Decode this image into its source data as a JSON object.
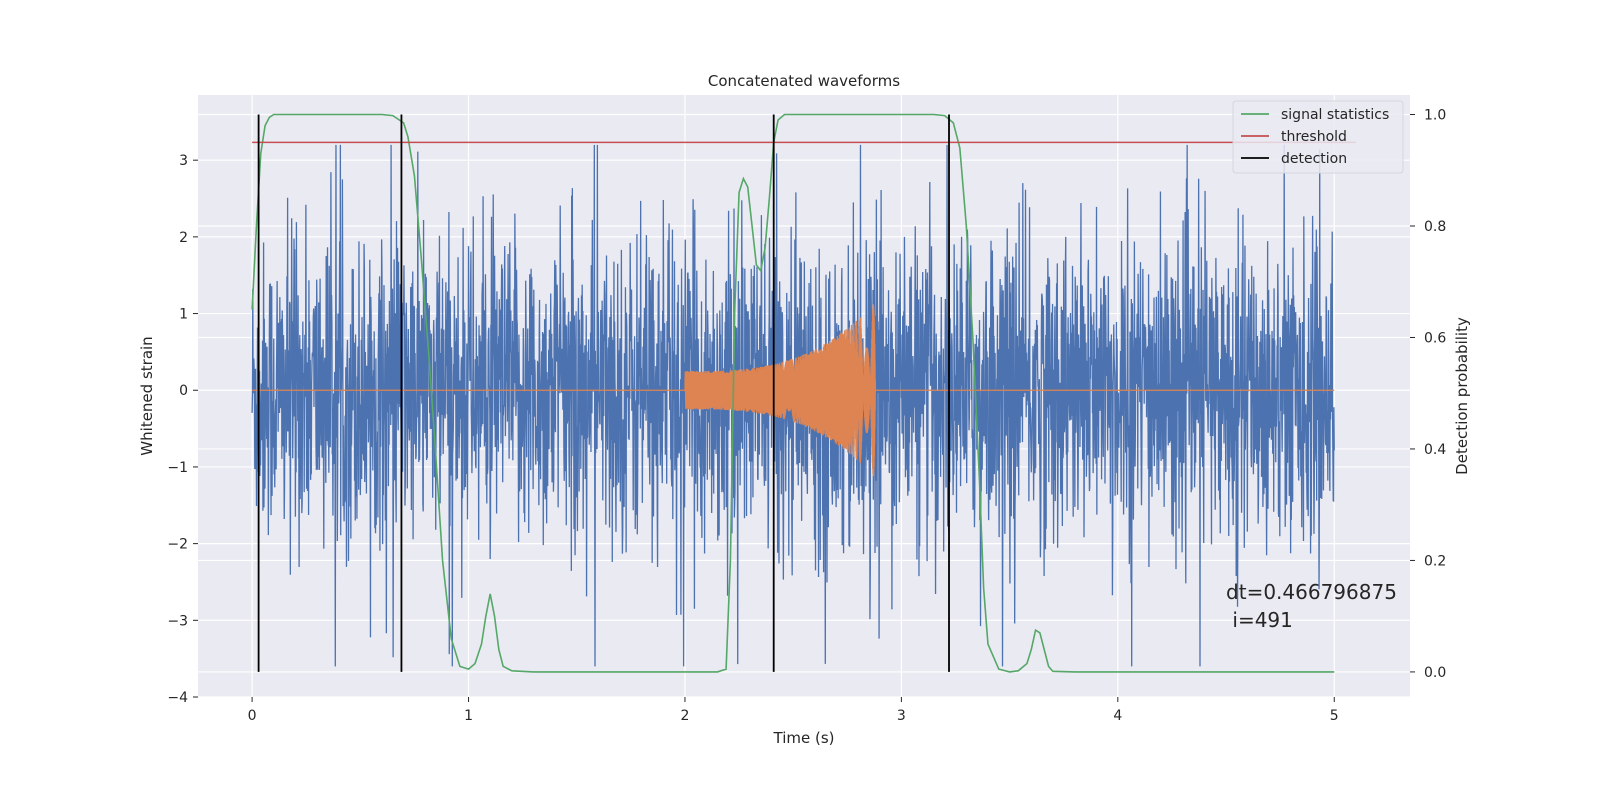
{
  "chart_data": {
    "type": "line",
    "title": "Concatenated waveforms",
    "xlabel": "Time (s)",
    "ylabel_left": "Whitened strain",
    "ylabel_right": "Detection probability",
    "xlim": [
      -0.25,
      5.35
    ],
    "ylim_left": [
      -4.0,
      3.85
    ],
    "ylim_right": [
      -0.045,
      1.035
    ],
    "x_ticks": [
      0,
      1,
      2,
      3,
      4,
      5
    ],
    "x_tick_labels": [
      "0",
      "1",
      "2",
      "3",
      "4",
      "5"
    ],
    "y_left_ticks": [
      -4,
      -3,
      -2,
      -1,
      0,
      1,
      2,
      3
    ],
    "y_left_tick_labels": [
      "−4",
      "−3",
      "−2",
      "−1",
      "0",
      "1",
      "2",
      "3"
    ],
    "y_right_ticks": [
      0.0,
      0.2,
      0.4,
      0.6,
      0.8,
      1.0
    ],
    "y_right_tick_labels": [
      "0.0",
      "0.2",
      "0.4",
      "0.6",
      "0.8",
      "1.0"
    ],
    "grid": true,
    "legend_position": "top-right",
    "legend": [
      {
        "label": "signal statistics",
        "color": "#55a868"
      },
      {
        "label": "threshold",
        "color": "#c44e52"
      },
      {
        "label": "detection",
        "color": "#000000"
      }
    ],
    "series": [
      {
        "name": "whitened strain",
        "axis": "left",
        "color": "#4c72b0",
        "description_range": [
          0,
          5
        ],
        "amplitude_envelope": 3.0,
        "noise": true
      },
      {
        "name": "injected signal",
        "axis": "left",
        "color": "#dd8452",
        "chirp_start": 2.0,
        "chirp_end": 2.88,
        "amplitude_start": 0.25,
        "amplitude_end": 1.15
      },
      {
        "name": "signal statistics",
        "axis": "right",
        "color": "#55a868",
        "x": [
          0,
          0.02,
          0.04,
          0.06,
          0.08,
          0.1,
          0.2,
          0.4,
          0.6,
          0.65,
          0.7,
          0.72,
          0.75,
          0.78,
          0.82,
          0.85,
          0.88,
          0.92,
          0.96,
          1.0,
          1.03,
          1.06,
          1.08,
          1.1,
          1.12,
          1.14,
          1.16,
          1.2,
          1.3,
          1.6,
          2.0,
          2.15,
          2.19,
          2.21,
          2.23,
          2.25,
          2.27,
          2.29,
          2.31,
          2.33,
          2.35,
          2.37,
          2.39,
          2.41,
          2.43,
          2.46,
          2.5,
          2.6,
          2.8,
          3.0,
          3.15,
          3.2,
          3.24,
          3.27,
          3.3,
          3.33,
          3.36,
          3.38,
          3.4,
          3.45,
          3.5,
          3.54,
          3.58,
          3.6,
          3.62,
          3.64,
          3.66,
          3.68,
          3.7,
          3.8,
          4.0,
          4.5,
          5.0
        ],
        "values": [
          0.65,
          0.8,
          0.93,
          0.98,
          0.995,
          1.0,
          1.0,
          1.0,
          1.0,
          0.998,
          0.985,
          0.96,
          0.89,
          0.75,
          0.55,
          0.38,
          0.2,
          0.06,
          0.01,
          0.005,
          0.015,
          0.05,
          0.1,
          0.14,
          0.1,
          0.04,
          0.01,
          0.002,
          0.0,
          0.0,
          0.0,
          0.0,
          0.005,
          0.2,
          0.65,
          0.86,
          0.885,
          0.87,
          0.8,
          0.73,
          0.72,
          0.76,
          0.85,
          0.95,
          0.99,
          1.0,
          1.0,
          1.0,
          1.0,
          1.0,
          1.0,
          0.998,
          0.985,
          0.94,
          0.8,
          0.6,
          0.35,
          0.15,
          0.05,
          0.005,
          0.0,
          0.002,
          0.015,
          0.04,
          0.075,
          0.07,
          0.04,
          0.01,
          0.001,
          0.0,
          0.0,
          0.0,
          0.0
        ]
      },
      {
        "name": "threshold",
        "axis": "right",
        "color": "#c44e52",
        "x": [
          0,
          5.1
        ],
        "values": [
          0.95,
          0.95
        ]
      }
    ],
    "detections": {
      "color": "#000000",
      "x": [
        0.03,
        0.69,
        2.41,
        3.22
      ],
      "y_range": [
        0.0,
        1.0
      ]
    },
    "annotation": {
      "line1": "dt=0.466796875",
      "line2": " i=491",
      "x": 4.5,
      "y": -2.85
    }
  }
}
